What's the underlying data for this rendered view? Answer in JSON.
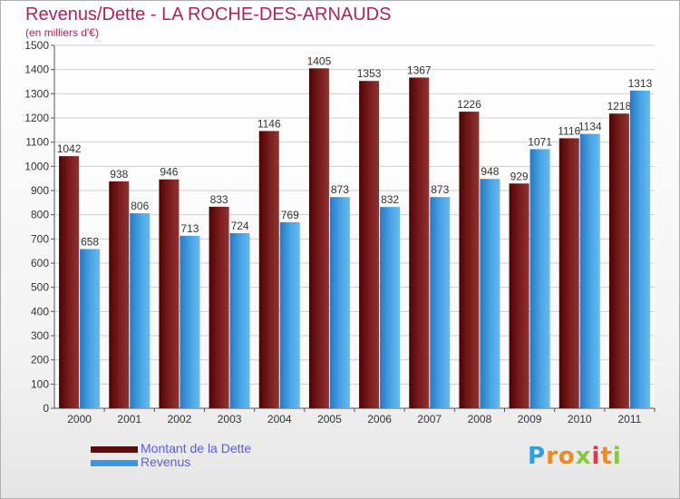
{
  "chart_data": {
    "type": "bar",
    "title": "Revenus/Dette - LA ROCHE-DES-ARNAUDS",
    "subtitle": "(en milliers d'€)",
    "categories": [
      "2000",
      "2001",
      "2002",
      "2003",
      "2004",
      "2005",
      "2006",
      "2007",
      "2008",
      "2009",
      "2010",
      "2011"
    ],
    "series": [
      {
        "name": "Montant de la Dette",
        "color": "#7a1a1a",
        "values": [
          1042,
          938,
          946,
          833,
          1146,
          1405,
          1353,
          1367,
          1226,
          929,
          1116,
          1218
        ]
      },
      {
        "name": "Revenus",
        "color": "#3d97d9",
        "values": [
          658,
          806,
          713,
          724,
          769,
          873,
          832,
          873,
          948,
          1071,
          1134,
          1313
        ]
      }
    ],
    "ylim": [
      0,
      1500
    ],
    "yticks": [
      0,
      100,
      200,
      300,
      400,
      500,
      600,
      700,
      800,
      900,
      1000,
      1100,
      1200,
      1300,
      1400,
      1500
    ],
    "grid": true,
    "legend_position": "bottom-left",
    "data_labels": true
  },
  "logo": {
    "letters": [
      "P",
      "r",
      "o",
      "x",
      "i",
      "t",
      "i"
    ],
    "colors": [
      "#2f9fe0",
      "#f08a1c",
      "#f08a1c",
      "#8cc63f",
      "#e2384f",
      "#f08a1c",
      "#8cc63f"
    ]
  }
}
